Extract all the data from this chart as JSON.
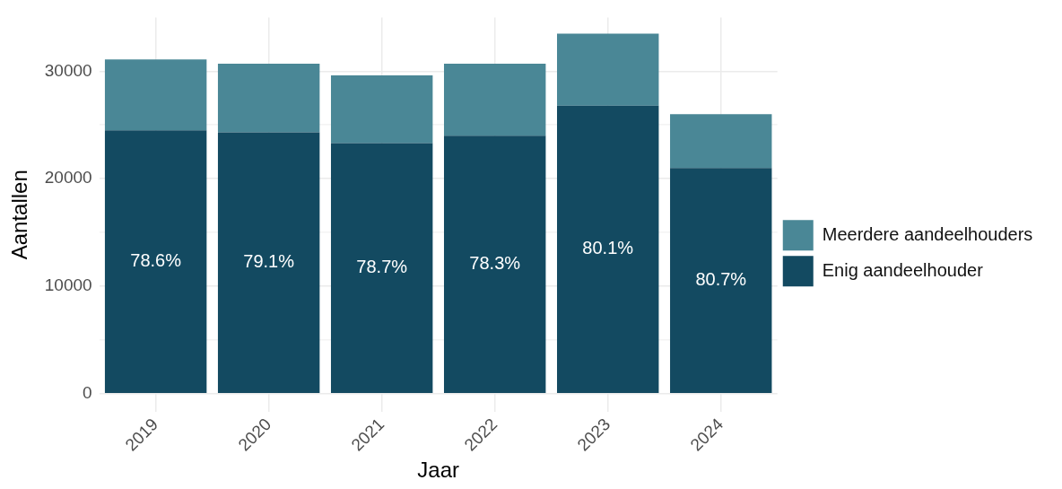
{
  "chart_data": {
    "type": "bar",
    "xlabel": "Jaar",
    "ylabel": "Aantallen",
    "categories": [
      "2019",
      "2020",
      "2021",
      "2022",
      "2023",
      "2024"
    ],
    "series": [
      {
        "name": "Enig aandeelhouder",
        "color": "#134a61",
        "values": [
          24500,
          24300,
          23300,
          24000,
          26800,
          21000
        ]
      },
      {
        "name": "Meerdere aandeelhouders",
        "color": "#4a8796",
        "values": [
          6600,
          6400,
          6300,
          6700,
          6700,
          5000
        ]
      }
    ],
    "annotations": [
      "78.6%",
      "79.1%",
      "78.7%",
      "78.3%",
      "80.1%",
      "80.7%"
    ],
    "stacked": true,
    "ylim": [
      -1700,
      35000
    ],
    "yticks": [
      0,
      {
        "value": 5000,
        "label": null
      },
      10000,
      {
        "value": 15000,
        "label": null
      },
      20000,
      {
        "value": 25000,
        "label": null
      },
      30000
    ],
    "grid": true,
    "legend": "right"
  }
}
